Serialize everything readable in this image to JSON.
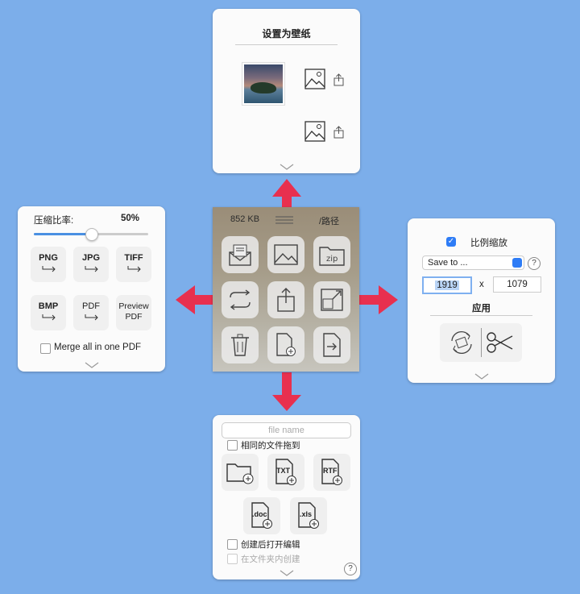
{
  "top_panel": {
    "title": "设置为壁纸"
  },
  "center_panel": {
    "size": "852 KB",
    "path": "/路径"
  },
  "left_panel": {
    "compress_label": "压缩比率:",
    "compress_value": "50%",
    "compress_level": 0.5,
    "formats": [
      "PNG",
      "JPG",
      "TIFF",
      "BMP",
      "PDF"
    ],
    "preview_pdf": [
      "Preview",
      "PDF"
    ],
    "merge_label": "Merge all in one PDF"
  },
  "right_panel": {
    "scale_label": "比例缩放",
    "save_to": "Save to ...",
    "help": "?",
    "width": "1919",
    "x": "x",
    "height": "1079",
    "apply": "应用"
  },
  "bottom_panel": {
    "filename_placeholder": "file name",
    "same_drag_label": "相同的文件拖到",
    "file_types": [
      "TXT",
      "RTF",
      ".doc",
      ".xls"
    ],
    "open_after_create": "创建后打开编辑",
    "create_in_folder": "在文件夹内创建",
    "help": "?"
  },
  "colors": {
    "background": "#7caeea",
    "arrow": "#e8304f",
    "accent": "#2e7cf6"
  }
}
